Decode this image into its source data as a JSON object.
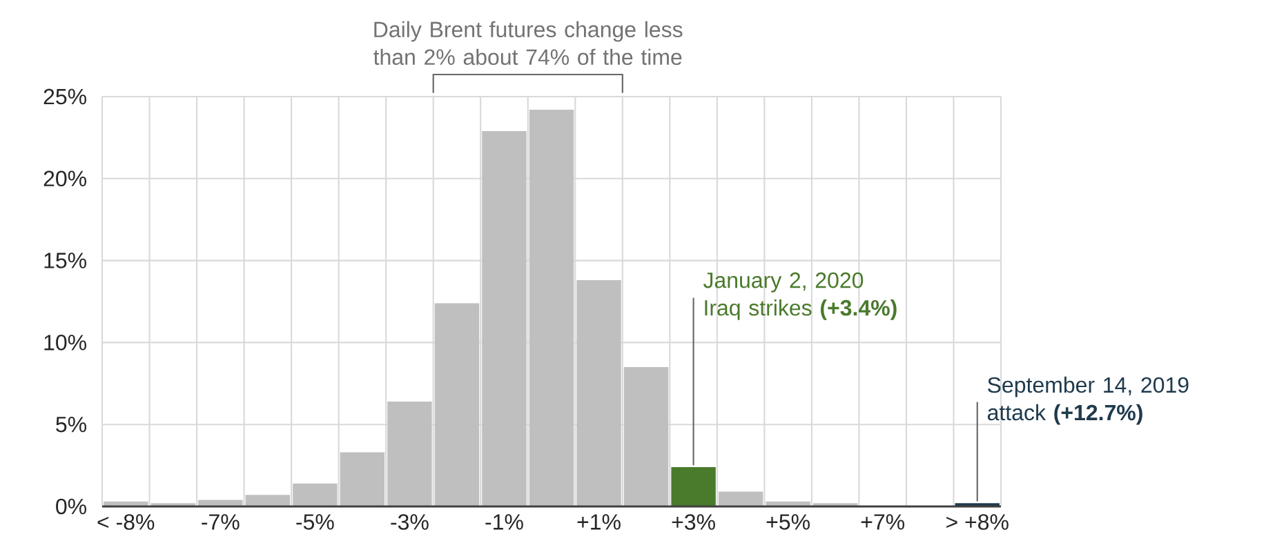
{
  "chart_data": {
    "type": "bar",
    "categories": [
      "< -8%",
      null,
      "-7%",
      null,
      "-5%",
      null,
      "-3%",
      null,
      "-1%",
      null,
      "+1%",
      null,
      "+3%",
      null,
      "+5%",
      null,
      "+7%",
      null,
      "> +8%"
    ],
    "values": [
      0.3,
      0.2,
      0.4,
      0.7,
      1.4,
      3.3,
      6.4,
      12.4,
      22.9,
      24.2,
      13.8,
      8.5,
      2.4,
      0.9,
      0.3,
      0.2,
      null,
      null,
      0.2
    ],
    "colors": [
      "#bfbfbf",
      "#bfbfbf",
      "#bfbfbf",
      "#bfbfbf",
      "#bfbfbf",
      "#bfbfbf",
      "#bfbfbf",
      "#bfbfbf",
      "#bfbfbf",
      "#bfbfbf",
      "#bfbfbf",
      "#bfbfbf",
      "#4a7a2c",
      "#bfbfbf",
      "#bfbfbf",
      "#bfbfbf",
      "#bfbfbf",
      "#bfbfbf",
      "#1f3a4d"
    ],
    "ylim": [
      0,
      25
    ],
    "yticks": [
      {
        "value": 0,
        "label": "0%"
      },
      {
        "value": 5,
        "label": "5%"
      },
      {
        "value": 10,
        "label": "10%"
      },
      {
        "value": 15,
        "label": "15%"
      },
      {
        "value": 20,
        "label": "20%"
      },
      {
        "value": 25,
        "label": "25%"
      }
    ],
    "grid": true,
    "annotations": [
      "Daily Brent futures change less than 2% about 74% of the time",
      {
        "text": "January 2, 2020 Iraq strikes **(+3.4%)**",
        "x": "+3%",
        "y": 2.4
      },
      {
        "text": "September 14, 2019 attack **(+12.7%)**",
        "x": "> +8%",
        "y": 0.2
      }
    ]
  }
}
